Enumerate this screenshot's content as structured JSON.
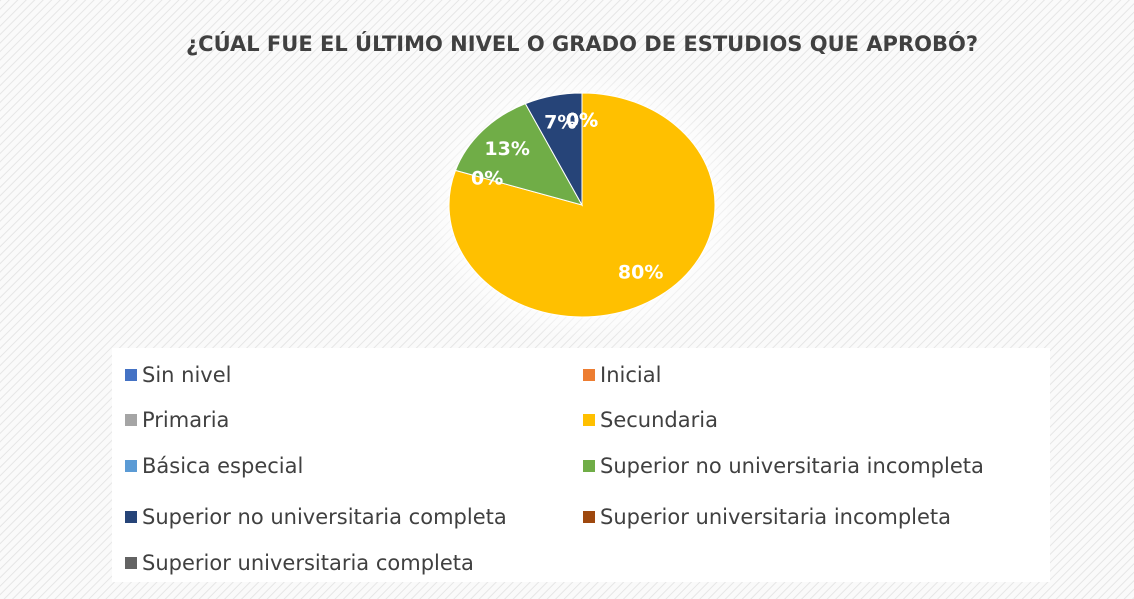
{
  "chart_data": {
    "type": "pie",
    "title": "¿CÚAL FUE EL ÚLTIMO NIVEL O GRADO DE ESTUDIOS QUE APROBÓ?",
    "categories": [
      "Sin nivel",
      "Inicial",
      "Primaria",
      "Secundaria",
      "Básica especial",
      "Superior no universitaria incompleta",
      "Superior no universitaria completa",
      "Superior universitaria incompleta",
      "Superior universitaria completa"
    ],
    "values": [
      0,
      0,
      0,
      80,
      0,
      13,
      7,
      0,
      0
    ],
    "value_labels": [
      "0%",
      "0%",
      "0%",
      "80%",
      "0%",
      "13%",
      "7%",
      "0%",
      "0%"
    ],
    "colors": [
      "#4472c4",
      "#ed7d31",
      "#a5a5a5",
      "#ffc000",
      "#5b9bd5",
      "#70ad47",
      "#264478",
      "#9e480e",
      "#636363"
    ],
    "legend": "bottom"
  }
}
